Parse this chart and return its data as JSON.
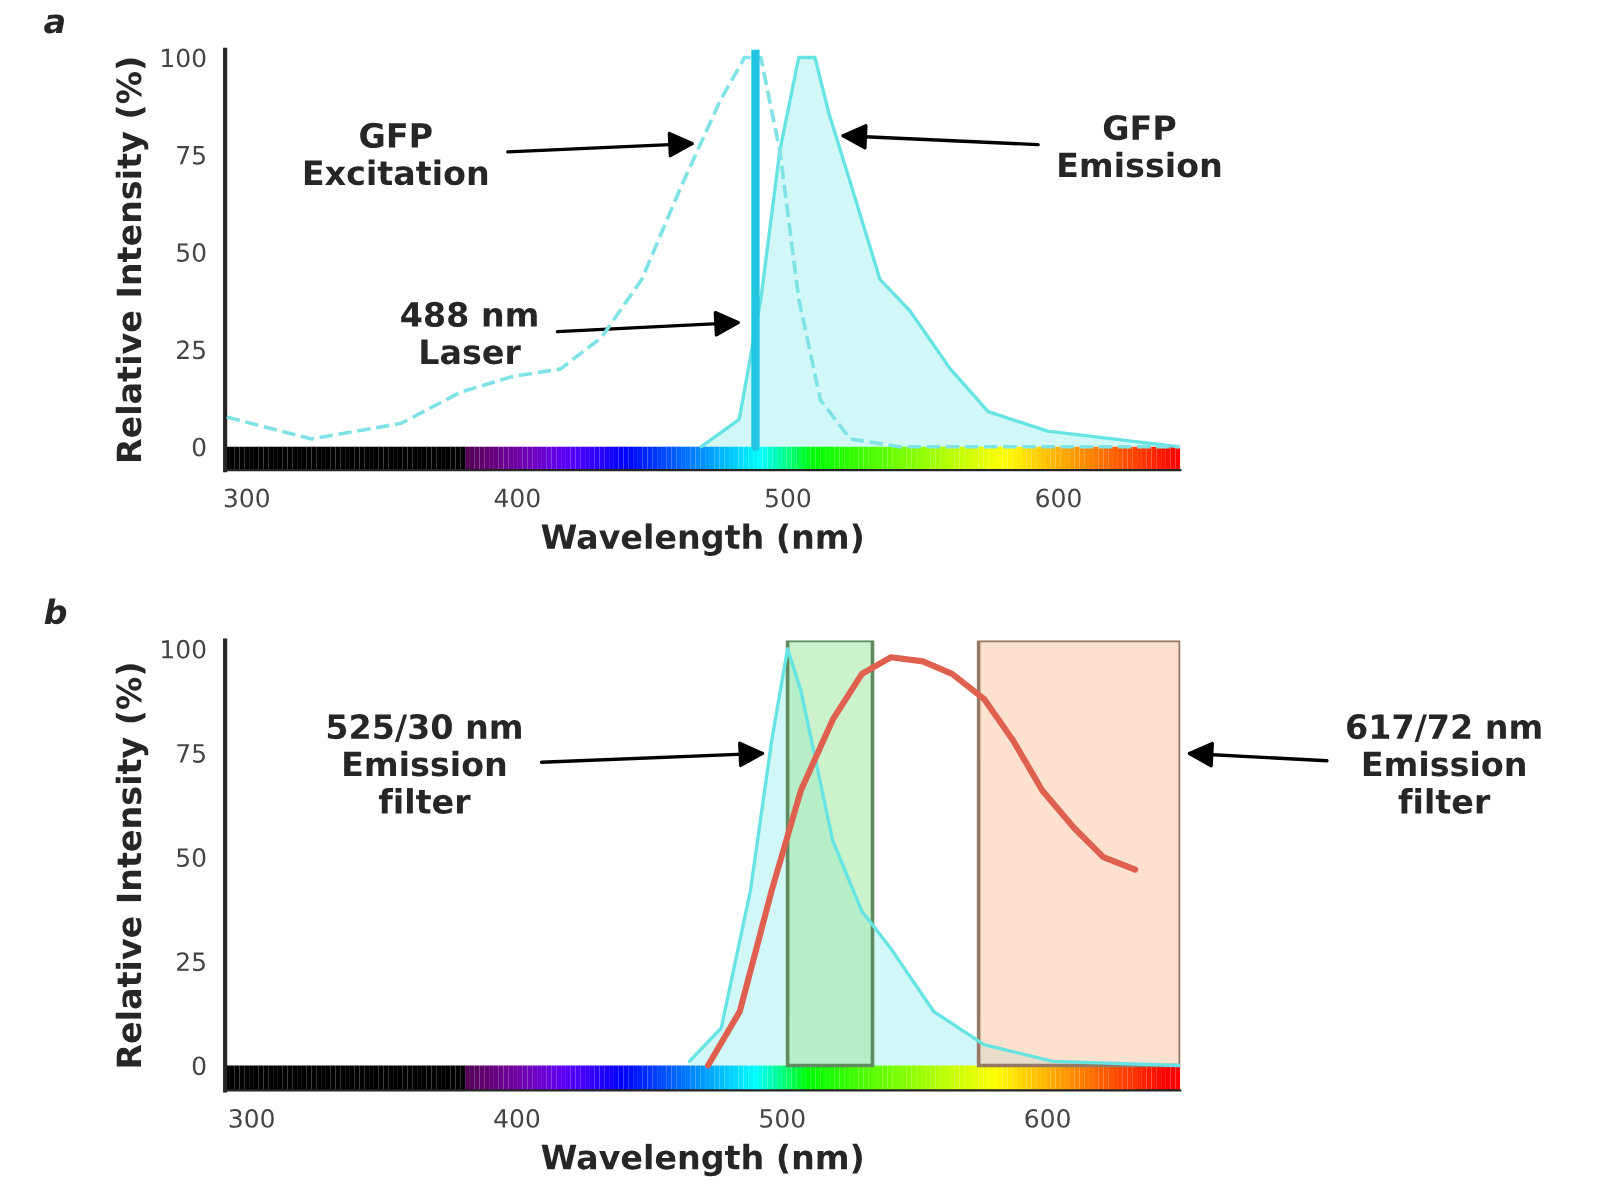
{
  "chart_data": [
    {
      "type": "line",
      "title": "a",
      "xlabel": "Wavelength (nm)",
      "ylabel": "Relative Intensity (%)",
      "xlim": [
        292,
        645
      ],
      "xticks": [
        300,
        400,
        500,
        600
      ],
      "ylim": [
        -6,
        102
      ],
      "yticks": [
        0,
        25,
        50,
        75,
        100
      ],
      "grid": false,
      "legend": false,
      "marker": "none",
      "series": [
        {
          "type": "line",
          "line_style": "dashed",
          "color": "#7fe3e6",
          "x": [
            292.6,
            324,
            357,
            379,
            398,
            416,
            431,
            446,
            460,
            475,
            484,
            490,
            497,
            504,
            512,
            523,
            541,
            645
          ],
          "values": [
            7.6,
            2,
            6,
            14,
            18,
            20,
            28,
            43,
            66,
            89,
            100,
            100,
            76,
            38,
            12,
            2,
            0,
            0
          ]
        },
        {
          "type": "area",
          "color": "#66e3e3",
          "x": [
            468,
            482,
            490,
            497,
            504,
            510,
            515,
            523,
            534,
            545,
            560,
            574,
            596,
            644
          ],
          "values": [
            0,
            7,
            38,
            76,
            100,
            100,
            86,
            68,
            43,
            35,
            20,
            9,
            4,
            0
          ]
        }
      ],
      "ref_lines": [
        {
          "axis": "x",
          "value": 488,
          "color": "#22c5e0"
        }
      ],
      "annotations": [
        {
          "text": "GFP\nExcitation",
          "x": 468,
          "y": 78
        },
        {
          "text": "GFP\nEmission",
          "x": 517,
          "y": 80
        },
        {
          "text": "488 nm\nLaser",
          "x": 485,
          "y": 32
        }
      ]
    },
    {
      "type": "line",
      "title": "b",
      "xlabel": "Wavelength (nm)",
      "ylabel": "Relative Intensity (%)",
      "xlim": [
        290,
        650
      ],
      "xticks": [
        300,
        400,
        500,
        600
      ],
      "ylim": [
        -6,
        102
      ],
      "yticks": [
        0,
        25,
        50,
        75,
        100
      ],
      "grid": false,
      "legend": false,
      "marker": "none",
      "series": [
        {
          "type": "area",
          "color": "#66e3e3",
          "x": [
            465,
            477,
            488,
            496,
            502,
            507,
            519,
            530,
            541,
            557,
            576,
            602,
            650
          ],
          "values": [
            1,
            9,
            42,
            78,
            100,
            90,
            54,
            37,
            28,
            13,
            5,
            1,
            0
          ]
        },
        {
          "type": "line",
          "color": "#e06050",
          "x": [
            472,
            484,
            496,
            507,
            519,
            530,
            541,
            553,
            564,
            576,
            587,
            598,
            610,
            621,
            633
          ],
          "values": [
            0,
            13,
            42,
            66,
            83,
            94,
            98,
            97,
            94,
            88,
            78,
            66,
            57,
            50,
            47
          ]
        }
      ],
      "bands": [
        {
          "axis": "x",
          "from": 502,
          "to": 534,
          "color": "#a0e8a0"
        },
        {
          "axis": "x",
          "from": 574,
          "to": 650,
          "color": "#f9c9a8"
        }
      ],
      "annotations": [
        {
          "text": "525/30 nm\nEmission\nfilter",
          "x": 496,
          "y": 75
        },
        {
          "text": "617/72 nm\nEmission\nfilter",
          "x": 650,
          "y": 75
        }
      ]
    }
  ]
}
